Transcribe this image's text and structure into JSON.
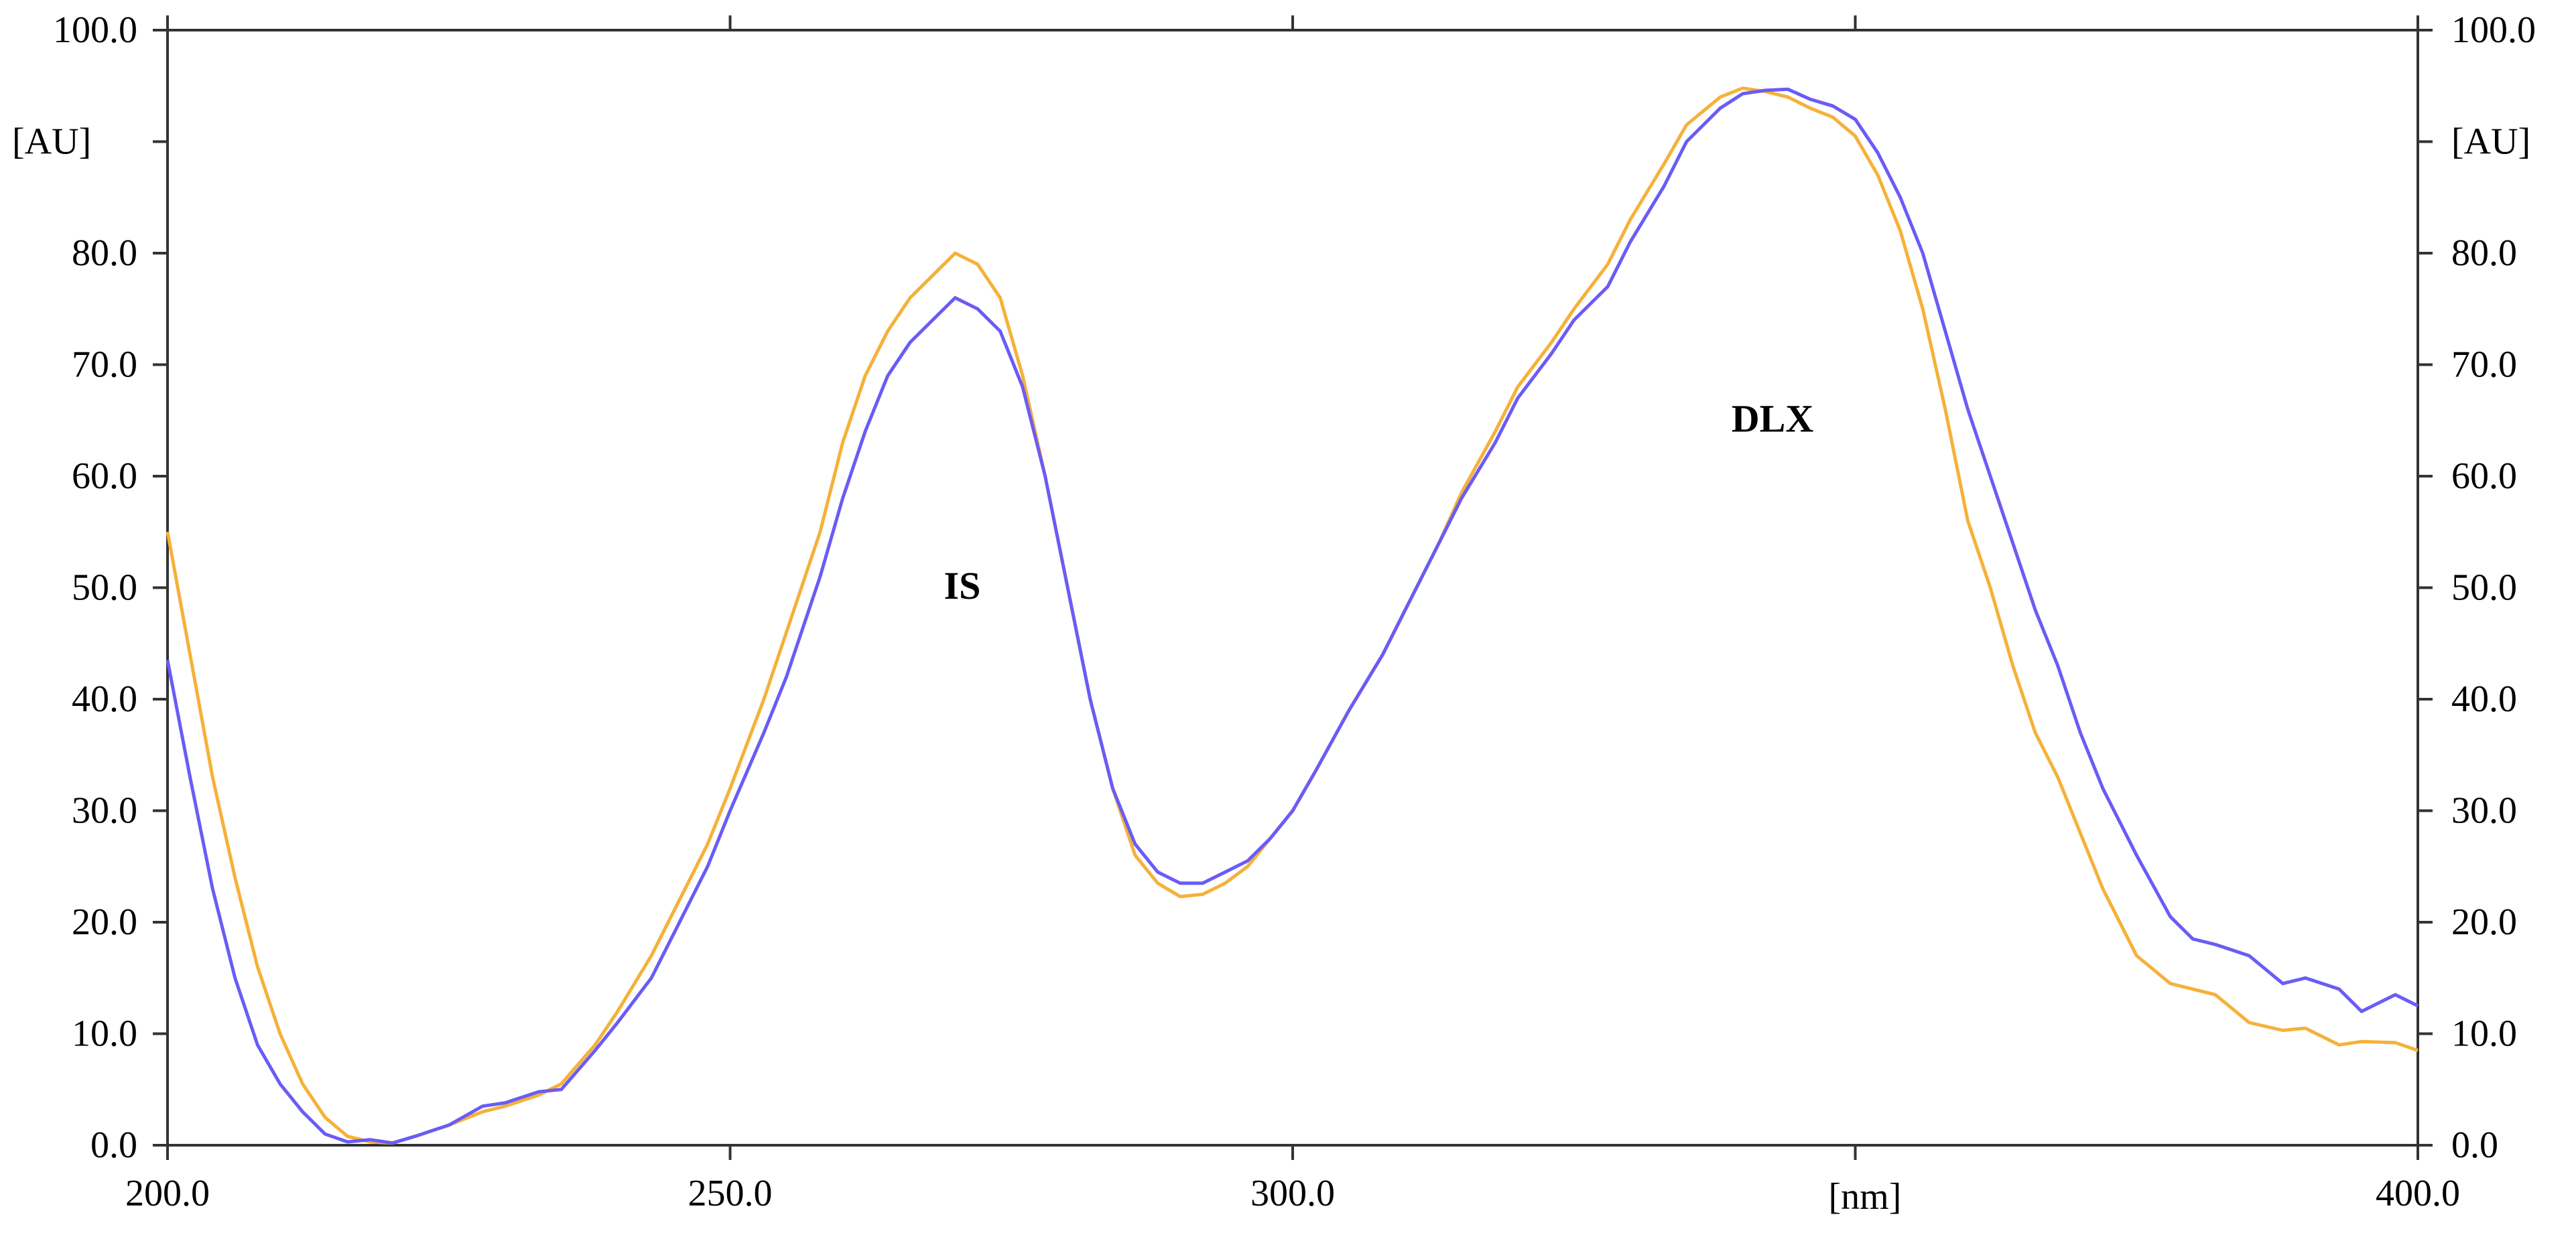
{
  "chart_data": {
    "type": "line",
    "title": "",
    "xlabel": "[nm]",
    "ylabel": "[AU]",
    "ylabel_right": "[AU]",
    "xlim": [
      200.0,
      400.0
    ],
    "ylim": [
      0.0,
      100.0
    ],
    "x_tick_labels": [
      "200.0",
      "250.0",
      "300.0",
      "400.0"
    ],
    "x_tick_values": [
      200,
      250,
      300,
      400
    ],
    "x_minor_ticks": [
      350
    ],
    "y_tick_labels": [
      "0.0",
      "10.0",
      "20.0",
      "30.0",
      "40.0",
      "50.0",
      "60.0",
      "70.0",
      "80.0",
      "100.0"
    ],
    "y_tick_values": [
      0,
      10,
      20,
      30,
      40,
      50,
      60,
      70,
      80,
      100
    ],
    "y_minor_ticks": [
      90
    ],
    "grid": false,
    "legend": "none",
    "annotations": [
      {
        "text": "IS",
        "x": 269,
        "y": 49
      },
      {
        "text": "DLX",
        "x": 339,
        "y": 64
      }
    ],
    "series": [
      {
        "color": "#6a5cf5",
        "x": [
          200,
          202,
          204,
          206,
          208,
          210,
          212,
          214,
          216,
          218,
          220,
          222,
          225,
          228,
          230,
          233,
          235,
          238,
          240,
          243,
          245,
          248,
          250,
          253,
          255,
          258,
          260,
          262,
          264,
          266,
          268,
          270,
          272,
          274,
          276,
          278,
          280,
          282,
          284,
          286,
          288,
          290,
          292,
          294,
          296,
          298,
          300,
          302,
          305,
          308,
          310,
          313,
          315,
          318,
          320,
          323,
          325,
          328,
          330,
          333,
          335,
          338,
          340,
          342,
          344,
          346,
          348,
          350,
          352,
          354,
          356,
          358,
          360,
          362,
          364,
          366,
          368,
          370,
          372,
          375,
          378,
          380,
          382,
          385,
          388,
          390,
          393,
          395,
          398,
          400
        ],
        "values": [
          43.5,
          33,
          23,
          15,
          9,
          5.5,
          3,
          1,
          0.3,
          0.5,
          0.2,
          0.8,
          1.8,
          3.5,
          3.8,
          4.8,
          5,
          8.5,
          11,
          15,
          19,
          25,
          30,
          37,
          42,
          51,
          58,
          64,
          69,
          72,
          74,
          76,
          75,
          73,
          68,
          60,
          50,
          40,
          32,
          27,
          24.5,
          23.5,
          23.5,
          24.5,
          25.5,
          27.5,
          30,
          33.5,
          39,
          44,
          48,
          54,
          58,
          63,
          67,
          71,
          74,
          77,
          81,
          86,
          90,
          93,
          94.3,
          94.6,
          94.7,
          93.8,
          93.2,
          92,
          89,
          85,
          80,
          73,
          66,
          60,
          54,
          48,
          43,
          37,
          32,
          26,
          20.5,
          18.5,
          18,
          17,
          14.5,
          15,
          14,
          12,
          13.5,
          12.5
        ]
      },
      {
        "color": "#f5b13a",
        "x": [
          200,
          202,
          204,
          206,
          208,
          210,
          212,
          214,
          216,
          218,
          220,
          222,
          225,
          228,
          230,
          233,
          235,
          238,
          240,
          243,
          245,
          248,
          250,
          253,
          255,
          258,
          260,
          262,
          264,
          266,
          268,
          270,
          272,
          274,
          276,
          278,
          280,
          282,
          284,
          286,
          288,
          290,
          292,
          294,
          296,
          298,
          300,
          302,
          305,
          308,
          310,
          313,
          315,
          318,
          320,
          323,
          325,
          328,
          330,
          333,
          335,
          338,
          340,
          342,
          344,
          346,
          348,
          350,
          352,
          354,
          356,
          358,
          360,
          362,
          364,
          366,
          368,
          370,
          372,
          375,
          378,
          380,
          382,
          385,
          388,
          390,
          393,
          395,
          398,
          400
        ],
        "values": [
          55,
          44,
          33,
          24,
          16,
          10,
          5.5,
          2.5,
          0.8,
          0.3,
          0.2,
          0.8,
          1.8,
          3,
          3.5,
          4.5,
          5.5,
          9,
          12,
          17,
          21,
          27,
          32,
          40,
          46,
          55,
          63,
          69,
          73,
          76,
          78,
          80,
          79,
          76,
          69,
          60,
          50,
          40,
          32,
          26,
          23.5,
          22.3,
          22.5,
          23.5,
          25,
          27.5,
          30,
          33.5,
          39,
          44,
          48,
          54,
          58.5,
          64,
          68,
          72,
          75,
          79,
          83,
          88,
          91.5,
          94,
          94.8,
          94.5,
          94,
          93,
          92.2,
          90.5,
          87,
          82,
          75,
          66,
          56,
          50,
          43,
          37,
          33,
          28,
          23,
          17,
          14.5,
          14,
          13.5,
          11,
          10.3,
          10.5,
          9,
          9.3,
          9.2,
          8.5
        ]
      }
    ]
  }
}
